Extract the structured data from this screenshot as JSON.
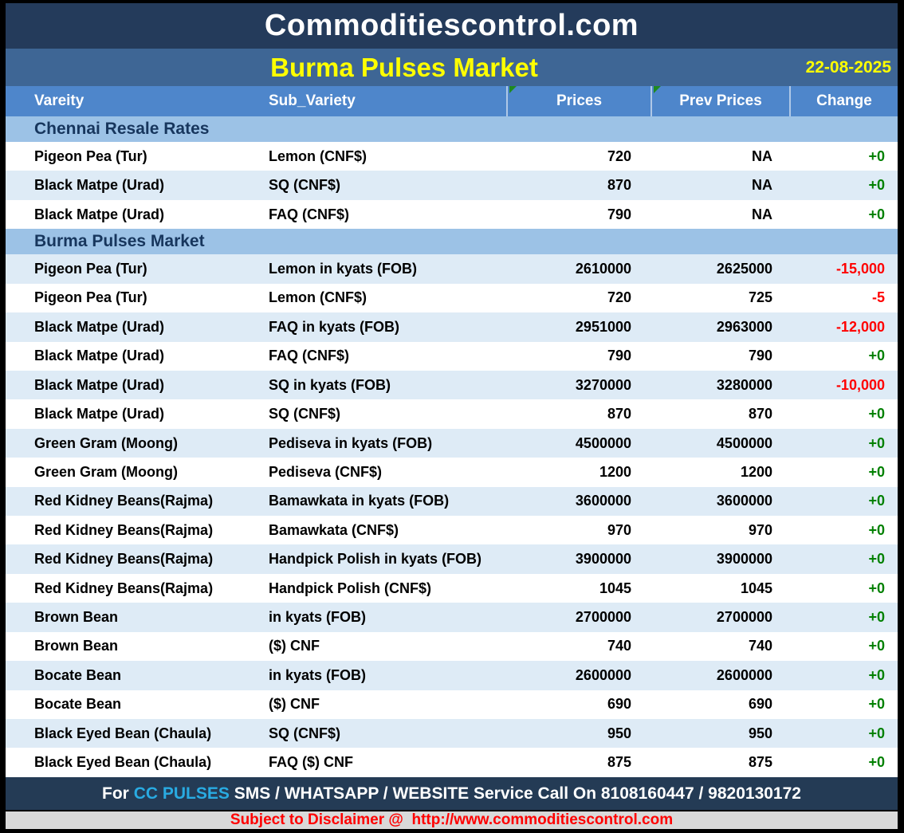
{
  "header": {
    "site_title": "Commoditiescontrol.com",
    "report_title": "Burma Pulses Market",
    "date": "22-08-2025"
  },
  "table": {
    "columns": [
      "Vareity",
      "Sub_Variety",
      "Prices",
      "Prev Prices",
      "Change"
    ],
    "flagged_columns": [
      "Prices",
      "Prev Prices"
    ],
    "sections": [
      {
        "title": "Chennai Resale Rates",
        "rows": [
          {
            "variety": "Pigeon Pea (Tur)",
            "sub_variety": "Lemon (CNF$)",
            "price": "720",
            "prev_price": "NA",
            "change": "+0"
          },
          {
            "variety": "Black Matpe (Urad)",
            "sub_variety": "SQ (CNF$)",
            "price": "870",
            "prev_price": "NA",
            "change": "+0"
          },
          {
            "variety": "Black Matpe (Urad)",
            "sub_variety": "FAQ (CNF$)",
            "price": "790",
            "prev_price": "NA",
            "change": "+0"
          }
        ]
      },
      {
        "title": "Burma Pulses Market",
        "rows": [
          {
            "variety": "Pigeon Pea (Tur)",
            "sub_variety": "Lemon in kyats (FOB)",
            "price": "2610000",
            "prev_price": "2625000",
            "change": "-15,000"
          },
          {
            "variety": "Pigeon Pea (Tur)",
            "sub_variety": "Lemon (CNF$)",
            "price": "720",
            "prev_price": "725",
            "change": "-5"
          },
          {
            "variety": "Black Matpe (Urad)",
            "sub_variety": "FAQ in kyats (FOB)",
            "price": "2951000",
            "prev_price": "2963000",
            "change": "-12,000"
          },
          {
            "variety": "Black Matpe (Urad)",
            "sub_variety": "FAQ (CNF$)",
            "price": "790",
            "prev_price": "790",
            "change": "+0"
          },
          {
            "variety": "Black Matpe (Urad)",
            "sub_variety": "SQ in kyats (FOB)",
            "price": "3270000",
            "prev_price": "3280000",
            "change": "-10,000"
          },
          {
            "variety": "Black Matpe (Urad)",
            "sub_variety": "SQ (CNF$)",
            "price": "870",
            "prev_price": "870",
            "change": "+0"
          },
          {
            "variety": "Green Gram (Moong)",
            "sub_variety": "Pediseva in kyats (FOB)",
            "price": "4500000",
            "prev_price": "4500000",
            "change": "+0"
          },
          {
            "variety": "Green Gram (Moong)",
            "sub_variety": "Pediseva (CNF$)",
            "price": "1200",
            "prev_price": "1200",
            "change": "+0"
          },
          {
            "variety": "Red Kidney Beans(Rajma)",
            "sub_variety": "Bamawkata in kyats (FOB)",
            "price": "3600000",
            "prev_price": "3600000",
            "change": "+0"
          },
          {
            "variety": "Red Kidney Beans(Rajma)",
            "sub_variety": "Bamawkata (CNF$)",
            "price": "970",
            "prev_price": "970",
            "change": "+0"
          },
          {
            "variety": "Red Kidney Beans(Rajma)",
            "sub_variety": "Handpick Polish in kyats (FOB)",
            "price": "3900000",
            "prev_price": "3900000",
            "change": "+0"
          },
          {
            "variety": "Red Kidney Beans(Rajma)",
            "sub_variety": "Handpick Polish (CNF$)",
            "price": "1045",
            "prev_price": "1045",
            "change": "+0"
          },
          {
            "variety": "Brown Bean",
            "sub_variety": "in kyats (FOB)",
            "price": "2700000",
            "prev_price": "2700000",
            "change": "+0"
          },
          {
            "variety": "Brown Bean",
            "sub_variety": "($) CNF",
            "price": "740",
            "prev_price": "740",
            "change": "+0"
          },
          {
            "variety": "Bocate Bean",
            "sub_variety": "in kyats (FOB)",
            "price": "2600000",
            "prev_price": "2600000",
            "change": "+0"
          },
          {
            "variety": "Bocate Bean",
            "sub_variety": "($) CNF",
            "price": "690",
            "prev_price": "690",
            "change": "+0"
          },
          {
            "variety": "Black Eyed Bean (Chaula)",
            "sub_variety": "SQ (CNF$)",
            "price": "950",
            "prev_price": "950",
            "change": "+0"
          },
          {
            "variety": "Black Eyed Bean (Chaula)",
            "sub_variety": "FAQ ($) CNF",
            "price": "875",
            "prev_price": "875",
            "change": "+0"
          }
        ]
      }
    ]
  },
  "footer": {
    "prefix": "For ",
    "brand": "CC PULSES",
    "suffix": " SMS / WHATSAPP / WEBSITE Service Call On 8108160447 / 9820130172"
  },
  "disclaimer": {
    "label": "Subject to Disclaimer @  ",
    "url": "http://www.commoditiescontrol.com"
  },
  "colors": {
    "title_bar": "#243B5B",
    "subtitle_bar": "#3E6695",
    "column_header": "#4E86CB",
    "section_band": "#9CC2E6",
    "alt_row": "#DEEBF6",
    "change_positive": "#008000",
    "change_negative": "#FF0000",
    "accent_yellow": "#FFFF00",
    "brand_cyan": "#29ABE2",
    "flag_green": "#1F8A1F",
    "disclaimer_bg": "#D9D9D9",
    "disclaimer_text": "#FF0000"
  }
}
